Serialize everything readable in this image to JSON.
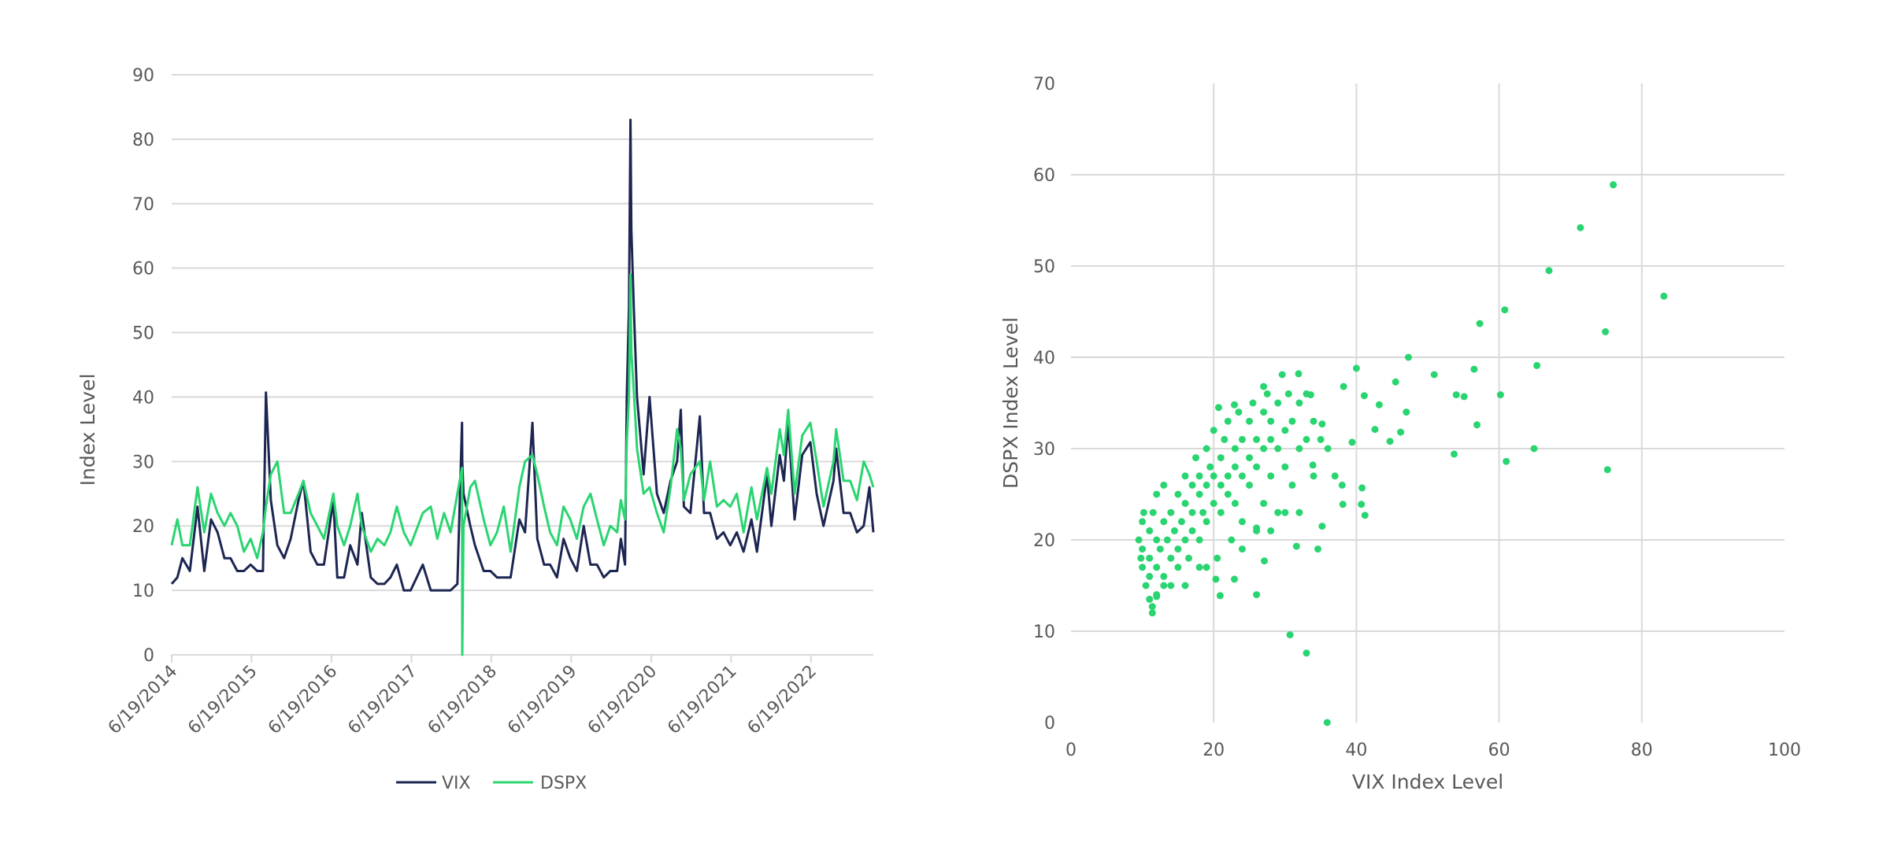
{
  "colors": {
    "vix": "#1d2652",
    "dspx": "#2ad571",
    "grid": "#d9d9d9",
    "text": "#595959"
  },
  "chart_data": [
    {
      "type": "line",
      "ylabel": "Index Level",
      "xlabel": "",
      "ylim": [
        0,
        90
      ],
      "yticks": [
        0,
        10,
        20,
        30,
        40,
        50,
        60,
        70,
        80,
        90
      ],
      "xlim": [
        "2014-06-19",
        "2023-03-31"
      ],
      "xtick_labels": [
        "6/19/2014",
        "6/19/2015",
        "6/19/2016",
        "6/19/2017",
        "6/19/2018",
        "6/19/2019",
        "6/19/2020",
        "6/19/2021",
        "6/19/2022"
      ],
      "xtick_dates": [
        "2014-06-19",
        "2015-06-19",
        "2016-06-19",
        "2017-06-19",
        "2018-06-19",
        "2019-06-19",
        "2020-06-19",
        "2021-06-19",
        "2022-06-19"
      ],
      "grid": "horizontal",
      "legend_position": "bottom",
      "x": [
        "2014-06-19",
        "2014-07-15",
        "2014-08-07",
        "2014-09-10",
        "2014-10-15",
        "2014-11-15",
        "2014-12-16",
        "2015-01-15",
        "2015-02-15",
        "2015-03-15",
        "2015-04-15",
        "2015-05-15",
        "2015-06-15",
        "2015-07-15",
        "2015-08-10",
        "2015-08-24",
        "2015-09-15",
        "2015-10-15",
        "2015-11-15",
        "2015-12-15",
        "2016-01-20",
        "2016-02-11",
        "2016-03-15",
        "2016-04-15",
        "2016-05-15",
        "2016-06-27",
        "2016-07-15",
        "2016-08-15",
        "2016-09-12",
        "2016-10-15",
        "2016-11-04",
        "2016-12-15",
        "2017-01-15",
        "2017-02-15",
        "2017-03-15",
        "2017-04-13",
        "2017-05-15",
        "2017-06-15",
        "2017-08-10",
        "2017-09-15",
        "2017-10-15",
        "2017-11-15",
        "2017-12-15",
        "2018-01-15",
        "2018-02-05",
        "2018-02-06",
        "2018-02-12",
        "2018-03-15",
        "2018-04-05",
        "2018-05-15",
        "2018-06-15",
        "2018-07-15",
        "2018-08-15",
        "2018-09-15",
        "2018-10-25",
        "2018-11-20",
        "2018-12-24",
        "2019-01-15",
        "2019-02-15",
        "2019-03-15",
        "2019-04-15",
        "2019-05-15",
        "2019-06-15",
        "2019-07-15",
        "2019-08-15",
        "2019-09-15",
        "2019-10-15",
        "2019-11-15",
        "2019-12-15",
        "2020-01-15",
        "2020-02-01",
        "2020-02-20",
        "2020-02-28",
        "2020-03-09",
        "2020-03-16",
        "2020-03-20",
        "2020-03-31",
        "2020-04-15",
        "2020-05-15",
        "2020-06-11",
        "2020-07-15",
        "2020-08-15",
        "2020-09-15",
        "2020-10-15",
        "2020-11-01",
        "2020-11-15",
        "2020-12-15",
        "2021-01-27",
        "2021-02-15",
        "2021-03-15",
        "2021-04-15",
        "2021-05-15",
        "2021-06-15",
        "2021-07-15",
        "2021-08-15",
        "2021-09-20",
        "2021-10-15",
        "2021-11-30",
        "2021-12-20",
        "2022-01-27",
        "2022-02-15",
        "2022-03-07",
        "2022-04-05",
        "2022-05-10",
        "2022-06-16",
        "2022-07-15",
        "2022-08-15",
        "2022-09-30",
        "2022-10-12",
        "2022-11-15",
        "2022-12-15",
        "2023-01-15",
        "2023-02-15",
        "2023-03-13",
        "2023-03-31"
      ],
      "series": [
        {
          "name": "VIX",
          "color": "#1d2652",
          "values": [
            11,
            12,
            15,
            13,
            23,
            13,
            21,
            19,
            15,
            15,
            13,
            13,
            14,
            13,
            13,
            40.7,
            24,
            17,
            15,
            18,
            24,
            27,
            16,
            14,
            14,
            24,
            12,
            12,
            17,
            14,
            22,
            12,
            11,
            11,
            12,
            14,
            10,
            10,
            14,
            10,
            10,
            10,
            10,
            11,
            36,
            30,
            25,
            20,
            17,
            13,
            13,
            12,
            12,
            12,
            21,
            19,
            36,
            18,
            14,
            14,
            12,
            18,
            15,
            13,
            20,
            14,
            14,
            12,
            13,
            13,
            18,
            14,
            40,
            54,
            83,
            66,
            54,
            40,
            28,
            40,
            25,
            22,
            27,
            30,
            38,
            23,
            22,
            37,
            22,
            22,
            18,
            19,
            17,
            19,
            16,
            21,
            16,
            28,
            20,
            31,
            27,
            36,
            21,
            31,
            33,
            25,
            20,
            27,
            32,
            22,
            22,
            19,
            20,
            26,
            19
          ]
        },
        {
          "name": "DSPX",
          "color": "#2ad571",
          "values": [
            17,
            21,
            17,
            17,
            26,
            19,
            25,
            22,
            20,
            22,
            20,
            16,
            18,
            15,
            19,
            23,
            28,
            30,
            22,
            22,
            25,
            27,
            22,
            20,
            18,
            25,
            20,
            17,
            20,
            25,
            20,
            16,
            18,
            17,
            19,
            23,
            19,
            17,
            22,
            23,
            18,
            22,
            19,
            25,
            29,
            0,
            20,
            26,
            27,
            21,
            17,
            19,
            23,
            16,
            26,
            30,
            31,
            28,
            23,
            19,
            17,
            23,
            21,
            18,
            23,
            25,
            21,
            17,
            20,
            19,
            24,
            21,
            33,
            40,
            59,
            47,
            41,
            32,
            25,
            26,
            22,
            19,
            26,
            35,
            32,
            24,
            28,
            30,
            24,
            30,
            23,
            24,
            23,
            25,
            19,
            26,
            21,
            29,
            25,
            35,
            31,
            38,
            25,
            34,
            36,
            30,
            23,
            30,
            35,
            27,
            27,
            24,
            30,
            28,
            26
          ]
        }
      ]
    },
    {
      "type": "scatter",
      "xlabel": "VIX Index Level",
      "ylabel": "DSPX Index Level",
      "xlim": [
        0,
        100
      ],
      "ylim": [
        0,
        70
      ],
      "xticks": [
        0,
        20,
        40,
        60,
        80,
        100
      ],
      "yticks": [
        0,
        10,
        20,
        30,
        40,
        50,
        60,
        70
      ],
      "grid": "both",
      "color": "#2ad571",
      "points": [
        [
          76.0,
          58.9
        ],
        [
          71.4,
          54.2
        ],
        [
          67.0,
          49.5
        ],
        [
          83.1,
          46.7
        ],
        [
          60.8,
          45.2
        ],
        [
          57.3,
          43.7
        ],
        [
          74.9,
          42.8
        ],
        [
          47.3,
          40.0
        ],
        [
          65.3,
          39.1
        ],
        [
          40.0,
          38.8
        ],
        [
          50.9,
          38.1
        ],
        [
          56.5,
          38.7
        ],
        [
          45.5,
          37.3
        ],
        [
          38.2,
          36.8
        ],
        [
          54.0,
          35.9
        ],
        [
          55.1,
          35.7
        ],
        [
          60.2,
          35.9
        ],
        [
          41.1,
          35.8
        ],
        [
          43.2,
          34.8
        ],
        [
          47.0,
          34.0
        ],
        [
          56.9,
          32.6
        ],
        [
          42.6,
          32.1
        ],
        [
          46.2,
          31.8
        ],
        [
          44.7,
          30.8
        ],
        [
          39.4,
          30.7
        ],
        [
          64.9,
          30.0
        ],
        [
          53.7,
          29.4
        ],
        [
          61.0,
          28.6
        ],
        [
          75.2,
          27.7
        ],
        [
          40.8,
          25.7
        ],
        [
          40.7,
          23.9
        ],
        [
          41.2,
          22.7
        ],
        [
          38.1,
          23.9
        ],
        [
          30.7,
          9.6
        ],
        [
          33.0,
          7.6
        ],
        [
          35.9,
          0.0
        ],
        [
          35.2,
          21.5
        ],
        [
          34.6,
          19.0
        ],
        [
          31.6,
          19.3
        ],
        [
          26.0,
          14.0
        ],
        [
          20.9,
          13.9
        ],
        [
          11.4,
          12.0
        ],
        [
          11.4,
          12.7
        ],
        [
          29.6,
          38.1
        ],
        [
          31.9,
          38.2
        ],
        [
          33.6,
          35.9
        ],
        [
          27.0,
          36.8
        ],
        [
          20.7,
          34.5
        ],
        [
          22.9,
          34.8
        ],
        [
          35.2,
          32.7
        ],
        [
          33.9,
          28.2
        ],
        [
          27.1,
          17.7
        ],
        [
          22.9,
          15.7
        ],
        [
          20.3,
          15.7
        ],
        [
          10,
          22
        ],
        [
          10,
          19
        ],
        [
          10,
          17
        ],
        [
          10.5,
          15
        ],
        [
          11,
          21
        ],
        [
          11,
          18
        ],
        [
          11,
          16
        ],
        [
          11.5,
          23
        ],
        [
          12,
          20
        ],
        [
          12,
          17
        ],
        [
          12,
          14
        ],
        [
          12,
          25
        ],
        [
          12.5,
          19
        ],
        [
          13,
          22
        ],
        [
          13,
          16
        ],
        [
          13,
          26
        ],
        [
          13.5,
          20
        ],
        [
          14,
          18
        ],
        [
          14,
          23
        ],
        [
          14,
          15
        ],
        [
          14.5,
          21
        ],
        [
          15,
          25
        ],
        [
          15,
          19
        ],
        [
          15,
          17
        ],
        [
          15.5,
          22
        ],
        [
          16,
          20
        ],
        [
          16,
          27
        ],
        [
          16,
          24
        ],
        [
          16.5,
          18
        ],
        [
          17,
          23
        ],
        [
          17,
          26
        ],
        [
          17,
          21
        ],
        [
          17.5,
          29
        ],
        [
          18,
          25
        ],
        [
          18,
          20
        ],
        [
          18,
          27
        ],
        [
          18.5,
          23
        ],
        [
          19,
          30
        ],
        [
          19,
          22
        ],
        [
          19,
          26
        ],
        [
          19.5,
          28
        ],
        [
          20,
          32
        ],
        [
          20,
          24
        ],
        [
          20,
          27
        ],
        [
          20.5,
          18
        ],
        [
          21,
          29
        ],
        [
          21,
          26
        ],
        [
          21,
          23
        ],
        [
          21.5,
          31
        ],
        [
          22,
          27
        ],
        [
          22,
          25
        ],
        [
          22,
          33
        ],
        [
          22.5,
          20
        ],
        [
          23,
          28
        ],
        [
          23,
          30
        ],
        [
          23,
          24
        ],
        [
          23.5,
          34
        ],
        [
          24,
          27
        ],
        [
          24,
          31
        ],
        [
          24,
          22
        ],
        [
          25,
          29
        ],
        [
          25,
          33
        ],
        [
          25,
          26
        ],
        [
          25.5,
          35
        ],
        [
          26,
          28
        ],
        [
          26,
          31
        ],
        [
          26,
          21
        ],
        [
          27,
          30
        ],
        [
          27,
          34
        ],
        [
          27,
          24
        ],
        [
          27.5,
          36
        ],
        [
          28,
          31
        ],
        [
          28,
          27
        ],
        [
          28,
          33
        ],
        [
          29,
          35
        ],
        [
          29,
          30
        ],
        [
          29,
          23
        ],
        [
          30,
          32
        ],
        [
          30,
          28
        ],
        [
          30.5,
          36
        ],
        [
          31,
          33
        ],
        [
          31,
          26
        ],
        [
          32,
          35
        ],
        [
          32,
          30
        ],
        [
          32,
          23
        ],
        [
          33,
          31
        ],
        [
          33,
          36
        ],
        [
          34,
          27
        ],
        [
          34,
          33
        ],
        [
          35,
          31
        ],
        [
          36,
          30
        ],
        [
          37,
          27
        ],
        [
          38,
          26
        ],
        [
          9.5,
          20
        ],
        [
          9.8,
          18
        ],
        [
          10.2,
          23
        ],
        [
          11,
          13.5
        ],
        [
          12,
          13.8
        ],
        [
          13,
          15
        ],
        [
          16,
          15
        ],
        [
          18,
          17
        ],
        [
          19,
          17
        ],
        [
          24,
          19
        ],
        [
          26,
          21.3
        ],
        [
          28,
          21
        ],
        [
          30,
          23
        ]
      ]
    }
  ]
}
